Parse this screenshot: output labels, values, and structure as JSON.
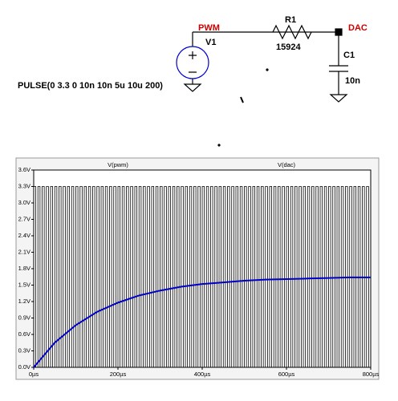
{
  "schematic": {
    "net_in": "PWM",
    "net_out": "DAC",
    "source": "V1",
    "source_value": "PULSE(0 3.3 0 10n 10n 5u 10u 200)",
    "resistor": "R1",
    "resistor_value": "15924",
    "capacitor": "C1",
    "capacitor_value": "10n"
  },
  "chart_data": {
    "type": "line",
    "xlim": [
      0,
      800
    ],
    "xticks": [
      {
        "value": 0,
        "label": "0µs"
      },
      {
        "value": 200,
        "label": "200µs"
      },
      {
        "value": 400,
        "label": "400µs"
      },
      {
        "value": 600,
        "label": "600µs"
      },
      {
        "value": 800,
        "label": "800µs"
      }
    ],
    "ylim": [
      0,
      3.6
    ],
    "yticks": [
      {
        "value": 0,
        "label": "0.0V"
      },
      {
        "value": 0.3,
        "label": "0.3V"
      },
      {
        "value": 0.6,
        "label": "0.6V"
      },
      {
        "value": 0.9,
        "label": "0.9V"
      },
      {
        "value": 1.2,
        "label": "1.2V"
      },
      {
        "value": 1.5,
        "label": "1.5V"
      },
      {
        "value": 1.8,
        "label": "1.8V"
      },
      {
        "value": 2.1,
        "label": "2.1V"
      },
      {
        "value": 2.4,
        "label": "2.4V"
      },
      {
        "value": 2.7,
        "label": "2.7V"
      },
      {
        "value": 3.0,
        "label": "3.0V"
      },
      {
        "value": 3.3,
        "label": "3.3V"
      },
      {
        "value": 3.6,
        "label": "3.6V"
      }
    ],
    "series": [
      {
        "name": "V(pwm)",
        "color": "#000000",
        "kind": "pulse",
        "low": 0,
        "high": 3.3,
        "period": 10,
        "width": 5
      },
      {
        "name": "V(dac)",
        "color": "#0000cc",
        "kind": "curve",
        "x": [
          0,
          50,
          100,
          150,
          200,
          250,
          300,
          350,
          400,
          450,
          500,
          550,
          600,
          650,
          700,
          750,
          800
        ],
        "values": [
          0,
          0.45,
          0.77,
          1.01,
          1.18,
          1.31,
          1.4,
          1.47,
          1.52,
          1.55,
          1.58,
          1.6,
          1.61,
          1.62,
          1.63,
          1.64,
          1.64
        ]
      }
    ]
  }
}
